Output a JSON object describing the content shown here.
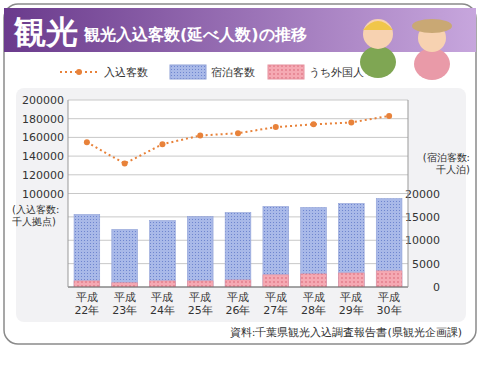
{
  "chart_data": {
    "type": "bar",
    "title": "観光",
    "subtitle": "観光入込客数(延べ人数)の推移",
    "source": "資料:千葉県観光入込調査報告書(県観光企画課)",
    "ylabel": "(入込客数:\n千人拠点)",
    "y2label": "(宿泊客数:\n千人泊)",
    "categories": [
      "平成22年",
      "平成23年",
      "平成24年",
      "平成25年",
      "平成26年",
      "平成27年",
      "平成28年",
      "平成29年",
      "平成30年"
    ],
    "series": [
      {
        "name": "入込客数",
        "type": "line",
        "color": "#e8823a",
        "marker": "circle",
        "line_style": "dotted",
        "values": [
          154800,
          132000,
          152700,
          162000,
          164500,
          171000,
          174000,
          176000,
          183000
        ]
      },
      {
        "name": "宿泊客数",
        "type": "bar",
        "axis": "y2",
        "color": "#a9b9e8",
        "values": [
          15500,
          12300,
          14200,
          15050,
          15900,
          17200,
          17000,
          17850,
          18900
        ]
      },
      {
        "name": "うち外国人",
        "type": "bar",
        "axis": "y2",
        "color": "#f5a9b3",
        "values": [
          1300,
          900,
          1300,
          1300,
          1500,
          2600,
          2800,
          3000,
          3450
        ]
      }
    ],
    "ylim": [
      0,
      200000
    ],
    "yticks": [
      100000,
      120000,
      140000,
      160000,
      180000,
      200000
    ],
    "y2lim": [
      0,
      40000
    ],
    "y2ticks": [
      0,
      5000,
      10000,
      15000,
      20000
    ],
    "stacked": false,
    "grid": true,
    "legend": "top"
  }
}
